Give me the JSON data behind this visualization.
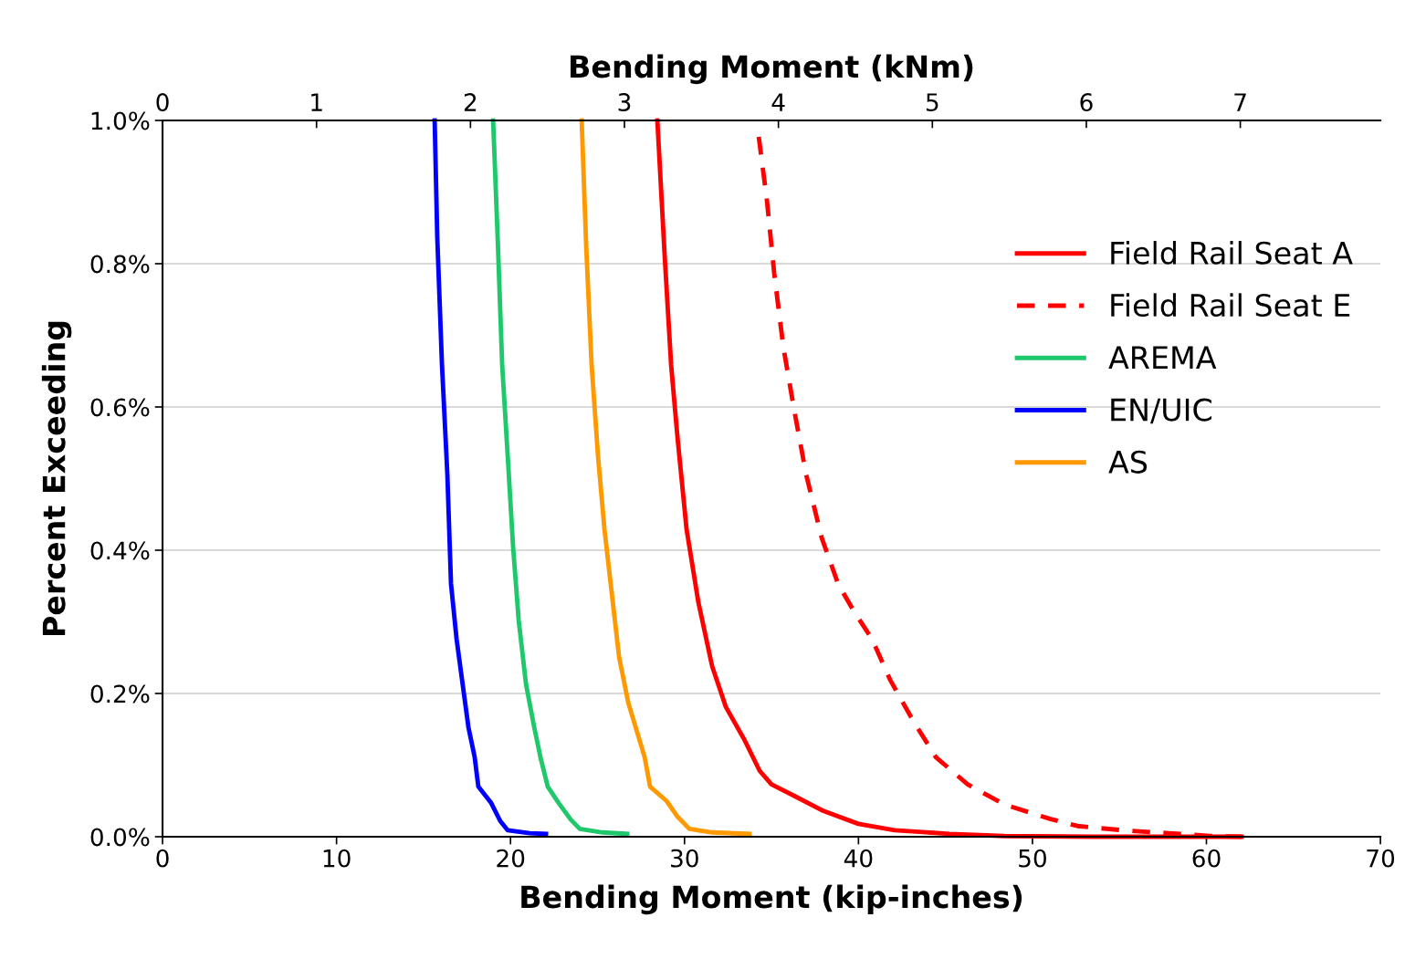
{
  "chart_data": {
    "type": "line",
    "xlabel": "Bending Moment (kip-inches)",
    "x2label": "Bending Moment (kNm)",
    "ylabel": "Percent Exceeding",
    "xlim": [
      0,
      70
    ],
    "xticks": [
      0,
      10,
      20,
      30,
      40,
      50,
      60,
      70
    ],
    "x2lim": [
      0,
      7.91
    ],
    "x2ticks": [
      0,
      1,
      2,
      3,
      4,
      5,
      6,
      7
    ],
    "ylim": [
      0,
      1.0
    ],
    "yticks": [
      {
        "value": 0,
        "label": "0.0%"
      },
      {
        "value": 0.2,
        "label": "0.2%"
      },
      {
        "value": 0.4,
        "label": "0.4%"
      },
      {
        "value": 0.6,
        "label": "0.6%"
      },
      {
        "value": 0.8,
        "label": "0.8%"
      },
      {
        "value": 1.0,
        "label": "1.0%"
      }
    ],
    "grid": "y",
    "legend": "top right",
    "marker": "none",
    "series": [
      {
        "name": "Field Rail Seat A",
        "color": "#ff0000",
        "line_style": "solid",
        "x": [
          28.44,
          28.86,
          29.23,
          29.6,
          30.12,
          30.8,
          31.59,
          32.38,
          33.43,
          34.32,
          35.0,
          36.31,
          37.89,
          39.99,
          42.08,
          45.23,
          48.38,
          53.63,
          62.02
        ],
        "values": [
          1.0,
          0.811,
          0.659,
          0.557,
          0.429,
          0.327,
          0.238,
          0.181,
          0.136,
          0.092,
          0.073,
          0.057,
          0.037,
          0.018,
          0.009,
          0.004,
          0.001,
          0.0,
          0.0
        ]
      },
      {
        "name": "Field Rail Seat E",
        "color": "#ff0000",
        "line_style": "dashed",
        "x": [
          34.27,
          34.74,
          35.16,
          35.68,
          36.31,
          36.99,
          37.89,
          38.83,
          39.73,
          40.78,
          41.82,
          43.14,
          44.45,
          46.28,
          48.38,
          51.0,
          52.58,
          55.2,
          57.8,
          60.2,
          62.02
        ],
        "values": [
          0.977,
          0.888,
          0.786,
          0.684,
          0.595,
          0.506,
          0.417,
          0.353,
          0.315,
          0.276,
          0.219,
          0.162,
          0.111,
          0.073,
          0.045,
          0.025,
          0.015,
          0.009,
          0.005,
          0.001,
          0.0
        ]
      },
      {
        "name": "AREMA",
        "color": "#1fc86b",
        "line_style": "solid",
        "x": [
          19.0,
          19.26,
          19.52,
          19.84,
          20.15,
          20.47,
          20.89,
          21.36,
          21.72,
          22.14,
          22.77,
          23.46,
          23.98,
          25.29,
          26.71
        ],
        "values": [
          1.0,
          0.837,
          0.659,
          0.531,
          0.404,
          0.302,
          0.213,
          0.153,
          0.111,
          0.07,
          0.047,
          0.024,
          0.011,
          0.006,
          0.004
        ]
      },
      {
        "name": "EN/UIC",
        "color": "#0000ff",
        "line_style": "solid",
        "x": [
          15.64,
          15.79,
          16.06,
          16.37,
          16.58,
          16.9,
          17.32,
          17.58,
          17.94,
          18.15,
          18.89,
          19.41,
          19.84,
          21.1,
          22.04
        ],
        "values": [
          1.0,
          0.837,
          0.659,
          0.506,
          0.353,
          0.276,
          0.2,
          0.153,
          0.111,
          0.07,
          0.047,
          0.022,
          0.009,
          0.005,
          0.004
        ]
      },
      {
        "name": "AS",
        "color": "#ff9900",
        "line_style": "solid",
        "x": [
          24.09,
          24.35,
          24.66,
          25.03,
          25.4,
          25.82,
          26.24,
          26.77,
          27.24,
          27.71,
          28.02,
          28.97,
          29.6,
          30.28,
          31.59,
          33.74
        ],
        "values": [
          1.0,
          0.824,
          0.659,
          0.531,
          0.429,
          0.34,
          0.251,
          0.187,
          0.149,
          0.111,
          0.07,
          0.05,
          0.028,
          0.011,
          0.006,
          0.004
        ]
      }
    ]
  }
}
